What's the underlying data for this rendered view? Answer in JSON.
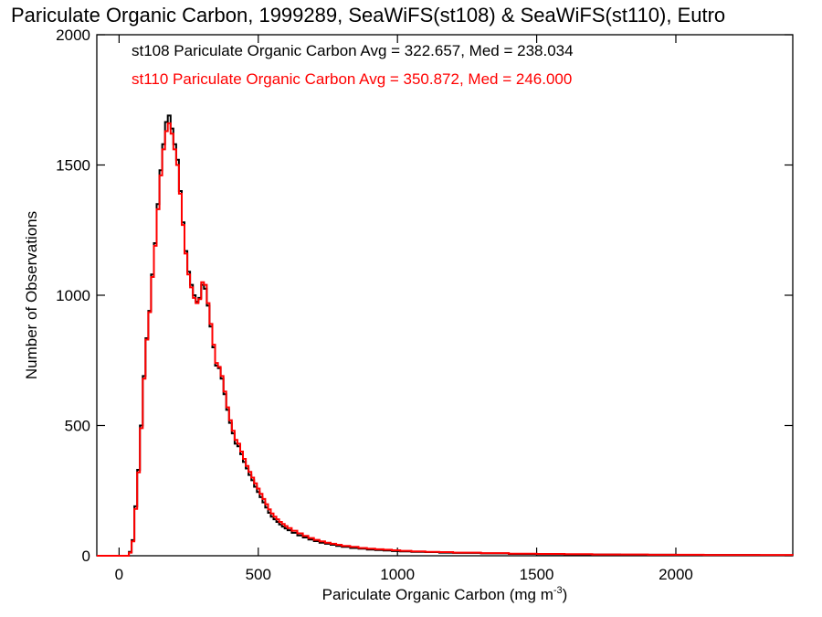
{
  "chart_data": {
    "type": "histogram",
    "title": "Pariculate Organic Carbon, 1999289, SeaWiFS(st108) & SeaWiFS(st110), Eutro",
    "xlabel": "Pariculate Organic Carbon (mg m",
    "xlabel_sup": "-3",
    "xlabel_end": ")",
    "ylabel": "Number of Observations",
    "xlim": [
      -80,
      2420
    ],
    "ylim": [
      0,
      2000
    ],
    "x_ticks": [
      0,
      500,
      1000,
      1500,
      2000
    ],
    "y_ticks": [
      0,
      500,
      1000,
      1500,
      2000
    ],
    "series": [
      {
        "legend": "st108 Pariculate Organic Carbon Avg = 322.657, Med = 238.034",
        "color": "#000000",
        "points": [
          [
            -80,
            0
          ],
          [
            25,
            0
          ],
          [
            35,
            15
          ],
          [
            45,
            60
          ],
          [
            55,
            190
          ],
          [
            65,
            330
          ],
          [
            75,
            500
          ],
          [
            85,
            690
          ],
          [
            95,
            835
          ],
          [
            105,
            940
          ],
          [
            115,
            1080
          ],
          [
            125,
            1200
          ],
          [
            135,
            1350
          ],
          [
            145,
            1480
          ],
          [
            155,
            1580
          ],
          [
            165,
            1665
          ],
          [
            175,
            1690
          ],
          [
            185,
            1640
          ],
          [
            195,
            1580
          ],
          [
            205,
            1520
          ],
          [
            215,
            1400
          ],
          [
            225,
            1280
          ],
          [
            235,
            1170
          ],
          [
            245,
            1090
          ],
          [
            255,
            1040
          ],
          [
            265,
            1000
          ],
          [
            275,
            975
          ],
          [
            285,
            990
          ],
          [
            295,
            1040
          ],
          [
            305,
            1025
          ],
          [
            315,
            960
          ],
          [
            325,
            880
          ],
          [
            335,
            800
          ],
          [
            345,
            730
          ],
          [
            355,
            720
          ],
          [
            365,
            680
          ],
          [
            375,
            620
          ],
          [
            385,
            560
          ],
          [
            395,
            510
          ],
          [
            405,
            470
          ],
          [
            415,
            430
          ],
          [
            425,
            420
          ],
          [
            435,
            390
          ],
          [
            445,
            360
          ],
          [
            455,
            335
          ],
          [
            465,
            310
          ],
          [
            475,
            290
          ],
          [
            485,
            265
          ],
          [
            495,
            245
          ],
          [
            505,
            225
          ],
          [
            515,
            205
          ],
          [
            525,
            185
          ],
          [
            535,
            165
          ],
          [
            545,
            150
          ],
          [
            555,
            140
          ],
          [
            565,
            130
          ],
          [
            575,
            120
          ],
          [
            585,
            112
          ],
          [
            595,
            105
          ],
          [
            605,
            98
          ],
          [
            620,
            88
          ],
          [
            640,
            78
          ],
          [
            660,
            70
          ],
          [
            680,
            62
          ],
          [
            700,
            56
          ],
          [
            720,
            50
          ],
          [
            740,
            46
          ],
          [
            760,
            42
          ],
          [
            780,
            38
          ],
          [
            800,
            34
          ],
          [
            830,
            30
          ],
          [
            860,
            27
          ],
          [
            890,
            24
          ],
          [
            920,
            22
          ],
          [
            950,
            20
          ],
          [
            980,
            18
          ],
          [
            1010,
            17
          ],
          [
            1050,
            15
          ],
          [
            1100,
            14
          ],
          [
            1150,
            12
          ],
          [
            1200,
            11
          ],
          [
            1300,
            9
          ],
          [
            1400,
            7
          ],
          [
            1500,
            6
          ],
          [
            1600,
            5
          ],
          [
            1700,
            5
          ],
          [
            1800,
            4
          ],
          [
            1900,
            4
          ],
          [
            2000,
            3
          ],
          [
            2100,
            3
          ],
          [
            2200,
            3
          ],
          [
            2300,
            2
          ],
          [
            2420,
            2
          ]
        ]
      },
      {
        "legend": "st110 Pariculate Organic Carbon Avg = 350.872, Med = 246.000",
        "color": "#ff0000",
        "points": [
          [
            -80,
            0
          ],
          [
            25,
            0
          ],
          [
            35,
            12
          ],
          [
            45,
            55
          ],
          [
            55,
            180
          ],
          [
            65,
            320
          ],
          [
            75,
            490
          ],
          [
            85,
            680
          ],
          [
            95,
            830
          ],
          [
            105,
            935
          ],
          [
            115,
            1070
          ],
          [
            125,
            1190
          ],
          [
            135,
            1330
          ],
          [
            145,
            1460
          ],
          [
            155,
            1560
          ],
          [
            165,
            1630
          ],
          [
            175,
            1660
          ],
          [
            185,
            1620
          ],
          [
            195,
            1560
          ],
          [
            205,
            1500
          ],
          [
            215,
            1390
          ],
          [
            225,
            1270
          ],
          [
            235,
            1160
          ],
          [
            245,
            1080
          ],
          [
            255,
            1030
          ],
          [
            265,
            990
          ],
          [
            275,
            970
          ],
          [
            285,
            985
          ],
          [
            295,
            1050
          ],
          [
            305,
            1040
          ],
          [
            315,
            970
          ],
          [
            325,
            890
          ],
          [
            335,
            810
          ],
          [
            345,
            740
          ],
          [
            355,
            725
          ],
          [
            365,
            690
          ],
          [
            375,
            630
          ],
          [
            385,
            570
          ],
          [
            395,
            520
          ],
          [
            405,
            480
          ],
          [
            415,
            445
          ],
          [
            425,
            430
          ],
          [
            435,
            400
          ],
          [
            445,
            372
          ],
          [
            455,
            345
          ],
          [
            465,
            322
          ],
          [
            475,
            300
          ],
          [
            485,
            278
          ],
          [
            495,
            258
          ],
          [
            505,
            238
          ],
          [
            515,
            218
          ],
          [
            525,
            198
          ],
          [
            535,
            178
          ],
          [
            545,
            162
          ],
          [
            555,
            150
          ],
          [
            565,
            140
          ],
          [
            575,
            130
          ],
          [
            585,
            122
          ],
          [
            595,
            114
          ],
          [
            605,
            106
          ],
          [
            620,
            96
          ],
          [
            640,
            86
          ],
          [
            660,
            76
          ],
          [
            680,
            68
          ],
          [
            700,
            61
          ],
          [
            720,
            55
          ],
          [
            740,
            50
          ],
          [
            760,
            46
          ],
          [
            780,
            42
          ],
          [
            800,
            38
          ],
          [
            830,
            34
          ],
          [
            860,
            30
          ],
          [
            890,
            27
          ],
          [
            920,
            25
          ],
          [
            950,
            23
          ],
          [
            980,
            21
          ],
          [
            1010,
            19
          ],
          [
            1050,
            17
          ],
          [
            1100,
            15
          ],
          [
            1150,
            14
          ],
          [
            1200,
            12
          ],
          [
            1300,
            10
          ],
          [
            1400,
            8
          ],
          [
            1500,
            7
          ],
          [
            1600,
            6
          ],
          [
            1700,
            5
          ],
          [
            1800,
            5
          ],
          [
            1900,
            4
          ],
          [
            2000,
            4
          ],
          [
            2100,
            3
          ],
          [
            2200,
            3
          ],
          [
            2300,
            3
          ],
          [
            2420,
            2
          ]
        ]
      }
    ],
    "grid": false
  }
}
